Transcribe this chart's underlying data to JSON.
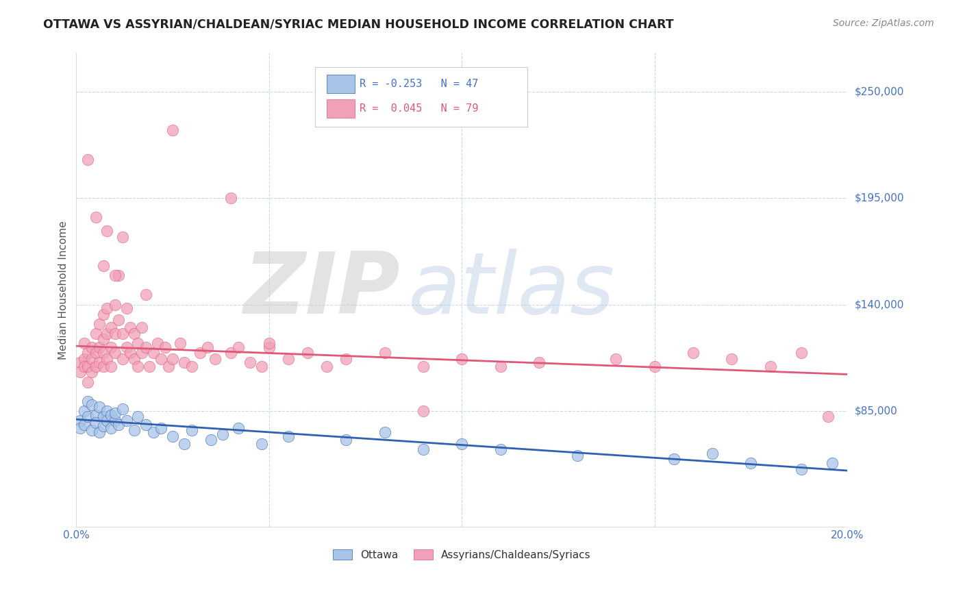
{
  "title": "OTTAWA VS ASSYRIAN/CHALDEAN/SYRIAC MEDIAN HOUSEHOLD INCOME CORRELATION CHART",
  "source": "Source: ZipAtlas.com",
  "ylabel": "Median Household Income",
  "ytick_labels": [
    "$250,000",
    "$195,000",
    "$140,000",
    "$85,000"
  ],
  "ytick_values": [
    250000,
    195000,
    140000,
    85000
  ],
  "xlim": [
    0.0,
    0.2
  ],
  "ylim": [
    25000,
    270000
  ],
  "xtick_labels": [
    "0.0%",
    "20.0%"
  ],
  "series": [
    {
      "label": "Ottawa",
      "R": -0.253,
      "N": 47,
      "color": "#a8c4e8",
      "line_color": "#3060b0",
      "x": [
        0.001,
        0.001,
        0.002,
        0.002,
        0.003,
        0.003,
        0.004,
        0.004,
        0.005,
        0.005,
        0.006,
        0.006,
        0.007,
        0.007,
        0.008,
        0.008,
        0.009,
        0.009,
        0.01,
        0.01,
        0.011,
        0.012,
        0.013,
        0.015,
        0.016,
        0.018,
        0.02,
        0.022,
        0.025,
        0.028,
        0.03,
        0.035,
        0.038,
        0.042,
        0.048,
        0.055,
        0.07,
        0.08,
        0.09,
        0.1,
        0.11,
        0.13,
        0.155,
        0.165,
        0.175,
        0.188,
        0.196
      ],
      "y": [
        80000,
        76000,
        85000,
        78000,
        90000,
        82000,
        88000,
        75000,
        83000,
        79000,
        87000,
        74000,
        82000,
        77000,
        85000,
        80000,
        83000,
        76000,
        80000,
        84000,
        78000,
        86000,
        80000,
        75000,
        82000,
        78000,
        74000,
        76000,
        72000,
        68000,
        75000,
        70000,
        73000,
        76000,
        68000,
        72000,
        70000,
        74000,
        65000,
        68000,
        65000,
        62000,
        60000,
        63000,
        58000,
        55000,
        58000
      ]
    },
    {
      "label": "Assyrians/Chaldeans/Syriacs",
      "R": 0.045,
      "N": 79,
      "color": "#f0a0b8",
      "line_color": "#e05878",
      "x": [
        0.001,
        0.001,
        0.002,
        0.002,
        0.002,
        0.003,
        0.003,
        0.003,
        0.004,
        0.004,
        0.004,
        0.005,
        0.005,
        0.005,
        0.006,
        0.006,
        0.006,
        0.007,
        0.007,
        0.007,
        0.007,
        0.008,
        0.008,
        0.008,
        0.009,
        0.009,
        0.009,
        0.01,
        0.01,
        0.01,
        0.011,
        0.011,
        0.012,
        0.012,
        0.013,
        0.013,
        0.014,
        0.014,
        0.015,
        0.015,
        0.016,
        0.016,
        0.017,
        0.017,
        0.018,
        0.019,
        0.02,
        0.021,
        0.022,
        0.023,
        0.024,
        0.025,
        0.027,
        0.028,
        0.03,
        0.032,
        0.034,
        0.036,
        0.04,
        0.042,
        0.045,
        0.048,
        0.05,
        0.055,
        0.06,
        0.065,
        0.07,
        0.08,
        0.09,
        0.1,
        0.11,
        0.12,
        0.14,
        0.15,
        0.16,
        0.17,
        0.18,
        0.188,
        0.195
      ],
      "y": [
        110000,
        105000,
        120000,
        112000,
        108000,
        115000,
        108000,
        100000,
        118000,
        112000,
        105000,
        125000,
        115000,
        108000,
        130000,
        118000,
        110000,
        135000,
        122000,
        115000,
        108000,
        138000,
        125000,
        112000,
        128000,
        118000,
        108000,
        140000,
        125000,
        115000,
        155000,
        132000,
        125000,
        112000,
        138000,
        118000,
        128000,
        115000,
        125000,
        112000,
        120000,
        108000,
        128000,
        115000,
        118000,
        108000,
        115000,
        120000,
        112000,
        118000,
        108000,
        112000,
        120000,
        110000,
        108000,
        115000,
        118000,
        112000,
        115000,
        118000,
        110000,
        108000,
        118000,
        112000,
        115000,
        108000,
        112000,
        115000,
        108000,
        112000,
        108000,
        110000,
        112000,
        108000,
        115000,
        112000,
        108000,
        115000,
        82000
      ]
    }
  ],
  "outlier_pink": [
    [
      0.04,
      195000
    ],
    [
      0.025,
      230000
    ],
    [
      0.012,
      175000
    ],
    [
      0.008,
      178000
    ],
    [
      0.005,
      185000
    ],
    [
      0.003,
      215000
    ],
    [
      0.007,
      160000
    ],
    [
      0.01,
      155000
    ],
    [
      0.018,
      145000
    ],
    [
      0.05,
      120000
    ],
    [
      0.09,
      85000
    ]
  ],
  "watermark_text": "ZIP",
  "watermark_text2": "atlas",
  "background_color": "#ffffff",
  "grid_color": "#c8d8ee",
  "title_color": "#222222",
  "tick_label_color": "#4472c4"
}
